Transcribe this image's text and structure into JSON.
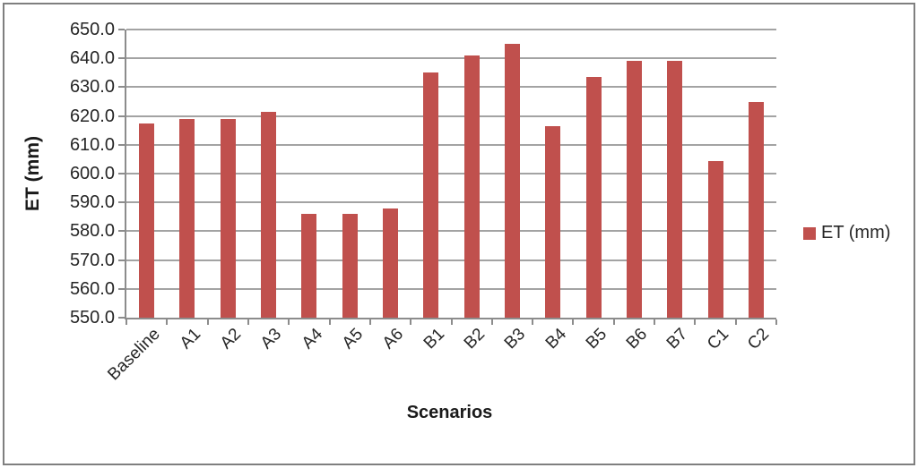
{
  "chart_data": {
    "type": "bar",
    "categories": [
      "Baseline",
      "A1",
      "A2",
      "A3",
      "A4",
      "A5",
      "A6",
      "B1",
      "B2",
      "B3",
      "B4",
      "B5",
      "B6",
      "B7",
      "C1",
      "C2"
    ],
    "values": [
      617.5,
      619.0,
      619.0,
      621.5,
      586.0,
      586.0,
      588.0,
      635.0,
      641.0,
      645.0,
      616.5,
      633.5,
      639.0,
      639.0,
      604.5,
      625.0
    ],
    "series_name": "ET (mm)",
    "title": "",
    "xlabel": "Scenarios",
    "ylabel": "ET (mm)",
    "ylim": [
      550,
      650
    ],
    "ytick_step": 10,
    "ytick_decimals": 1,
    "grid": true,
    "legend_position": "right",
    "legend": [
      "ET (mm)"
    ],
    "bar_color": "#c0504d",
    "gridline_color": "#a3a3a3",
    "axis_color": "#8c8c8c",
    "text_color": "#262626"
  }
}
